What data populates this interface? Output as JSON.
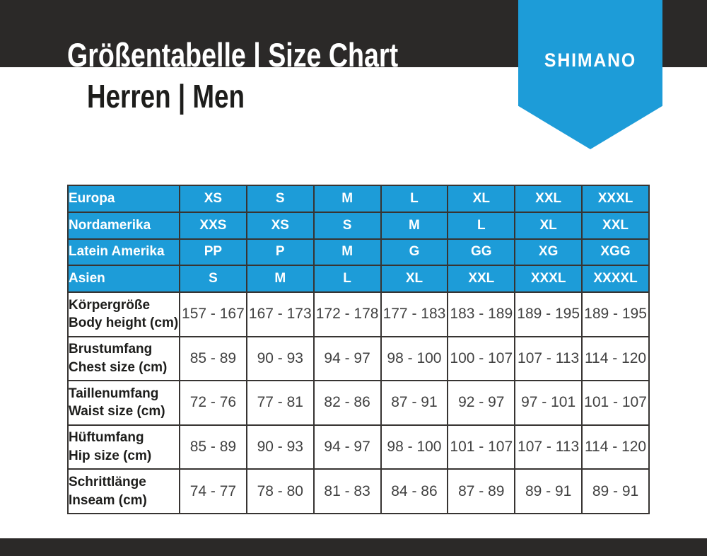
{
  "header": {
    "title": "Größentabelle | Size Chart",
    "subtitle": "Herren | Men",
    "brand": "SHIMANO"
  },
  "colors": {
    "accent_blue": "#1d9cd8",
    "band_charcoal": "#2b2928",
    "grid_line": "#373432"
  },
  "size_table": {
    "region_rows": [
      {
        "label": "Europa",
        "sizes": [
          "XS",
          "S",
          "M",
          "L",
          "XL",
          "XXL",
          "XXXL"
        ]
      },
      {
        "label": "Nordamerika",
        "sizes": [
          "XXS",
          "XS",
          "S",
          "M",
          "L",
          "XL",
          "XXL"
        ]
      },
      {
        "label": "Latein Amerika",
        "sizes": [
          "PP",
          "P",
          "M",
          "G",
          "GG",
          "XG",
          "XGG"
        ]
      },
      {
        "label": "Asien",
        "sizes": [
          "S",
          "M",
          "L",
          "XL",
          "XXL",
          "XXXL",
          "XXXXL"
        ]
      }
    ],
    "measure_rows": [
      {
        "label_de": "Körpergröße",
        "label_en": "Body height (cm)",
        "values": [
          "157 - 167",
          "167 - 173",
          "172 - 178",
          "177 - 183",
          "183 - 189",
          "189 - 195",
          "189 - 195"
        ]
      },
      {
        "label_de": "Brustumfang",
        "label_en": "Chest size (cm)",
        "values": [
          "85 - 89",
          "90 - 93",
          "94 - 97",
          "98 - 100",
          "100 - 107",
          "107 - 113",
          "114 - 120"
        ]
      },
      {
        "label_de": "Taillenumfang",
        "label_en": "Waist size (cm)",
        "values": [
          "72 - 76",
          "77 - 81",
          "82 - 86",
          "87 - 91",
          "92 - 97",
          "97 - 101",
          "101 - 107"
        ]
      },
      {
        "label_de": "Hüftumfang",
        "label_en": "Hip size (cm)",
        "values": [
          "85 - 89",
          "90 - 93",
          "94 - 97",
          "98 - 100",
          "101 - 107",
          "107 - 113",
          "114 - 120"
        ]
      },
      {
        "label_de": "Schrittlänge",
        "label_en": "Inseam (cm)",
        "values": [
          "74 - 77",
          "78 - 80",
          "81 - 83",
          "84 - 86",
          "87 - 89",
          "89 - 91",
          "89 - 91"
        ]
      }
    ]
  }
}
